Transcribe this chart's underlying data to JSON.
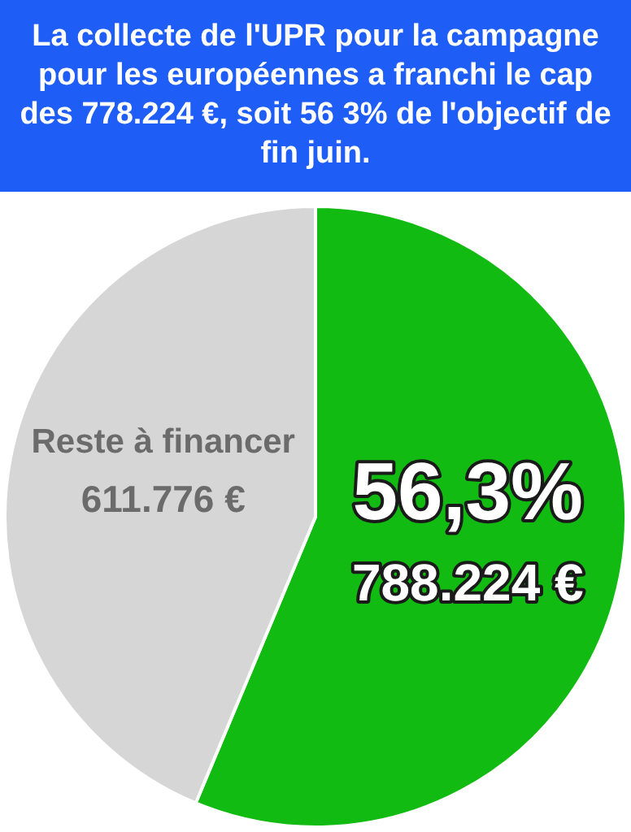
{
  "chart_data": {
    "type": "pie",
    "title": "La collecte de l'UPR pour la campagne pour les européennes a franchi le cap des 778.224 €, soit 56 3% de l'objectif de fin juin.",
    "categories": [
      null,
      "Reste à financer"
    ],
    "values": [
      788224,
      611776
    ],
    "colors": [
      "#11bb11",
      "#d6d6d6"
    ],
    "value_labels": [
      "788.224 €",
      "611.776 €"
    ],
    "annotations": [
      "56,3%"
    ],
    "legend": false
  }
}
